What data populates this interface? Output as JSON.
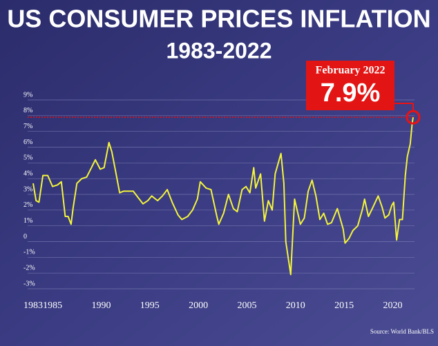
{
  "chart_data": {
    "type": "line",
    "title": "US CONSUMER PRICES INFLATION",
    "subtitle": "1983-2022",
    "source": "Source: World Bank/BLS",
    "annotation": {
      "label": "February 2022",
      "value": 7.9,
      "value_label": "7.9%"
    },
    "color": "#f4f53a",
    "grid": true,
    "xlim": [
      1983,
      2022.1
    ],
    "xticks": [
      1983,
      1985,
      1990,
      1995,
      2000,
      2005,
      2010,
      2015,
      2020
    ],
    "ylim": [
      -3,
      9
    ],
    "yticks": [
      {
        "value": -3,
        "label": "-3%"
      },
      {
        "value": -2,
        "label": "-2%"
      },
      {
        "value": -1,
        "label": "-1%"
      },
      0,
      {
        "value": 1,
        "label": "1%"
      },
      {
        "value": 2,
        "label": "2%"
      },
      {
        "value": 3,
        "label": "3%"
      },
      {
        "value": 4,
        "label": "4%"
      },
      {
        "value": 5,
        "label": "5%"
      },
      {
        "value": 6,
        "label": "6%"
      },
      {
        "value": 7,
        "label": "7%"
      },
      {
        "value": 8,
        "label": "8%"
      },
      {
        "value": 9,
        "label": "9%"
      }
    ],
    "x": [
      1983.0,
      1983.3,
      1983.6,
      1984.0,
      1984.5,
      1985.0,
      1985.5,
      1985.9,
      1986.3,
      1986.6,
      1986.9,
      1987.1,
      1987.5,
      1988.0,
      1988.5,
      1989.0,
      1989.4,
      1989.9,
      1990.3,
      1990.8,
      1991.1,
      1991.5,
      1991.9,
      1992.3,
      1992.8,
      1993.3,
      1993.8,
      1994.3,
      1994.8,
      1995.2,
      1995.8,
      1996.3,
      1996.8,
      1997.3,
      1997.9,
      1998.3,
      1998.9,
      1999.4,
      1999.9,
      2000.2,
      2000.8,
      2001.3,
      2001.9,
      2002.1,
      2002.6,
      2003.1,
      2003.6,
      2004.0,
      2004.5,
      2004.9,
      2005.3,
      2005.7,
      2005.9,
      2006.4,
      2006.8,
      2007.2,
      2007.6,
      2007.9,
      2008.5,
      2008.8,
      2009.0,
      2009.5,
      2009.9,
      2010.5,
      2010.9,
      2011.3,
      2011.7,
      2012.1,
      2012.5,
      2012.9,
      2013.3,
      2013.7,
      2014.3,
      2014.9,
      2015.1,
      2015.5,
      2015.9,
      2016.4,
      2016.9,
      2017.1,
      2017.5,
      2017.9,
      2018.5,
      2018.9,
      2019.2,
      2019.6,
      2019.9,
      2020.1,
      2020.4,
      2020.7,
      2021.0,
      2021.3,
      2021.5,
      2021.8,
      2022.0,
      2022.1
    ],
    "values": [
      3.7,
      2.6,
      2.5,
      4.2,
      4.2,
      3.5,
      3.6,
      3.8,
      1.6,
      1.6,
      1.1,
      2.1,
      3.7,
      4.0,
      4.1,
      4.7,
      5.2,
      4.6,
      4.7,
      6.3,
      5.7,
      4.4,
      3.1,
      3.2,
      3.2,
      3.2,
      2.8,
      2.4,
      2.6,
      2.9,
      2.6,
      2.9,
      3.3,
      2.5,
      1.7,
      1.4,
      1.6,
      2.0,
      2.7,
      3.8,
      3.4,
      3.3,
      1.6,
      1.1,
      1.8,
      3.0,
      2.1,
      1.9,
      3.3,
      3.5,
      3.1,
      4.7,
      3.4,
      4.3,
      1.3,
      2.6,
      2.0,
      4.3,
      5.6,
      3.7,
      0.0,
      -2.1,
      2.7,
      1.1,
      1.5,
      3.2,
      3.9,
      2.9,
      1.4,
      1.8,
      1.1,
      1.2,
      2.1,
      0.8,
      -0.1,
      0.2,
      0.7,
      1.0,
      2.1,
      2.7,
      1.6,
      2.1,
      2.9,
      2.2,
      1.5,
      1.7,
      2.3,
      2.5,
      0.1,
      1.4,
      1.4,
      4.2,
      5.4,
      6.2,
      7.5,
      7.9
    ]
  }
}
